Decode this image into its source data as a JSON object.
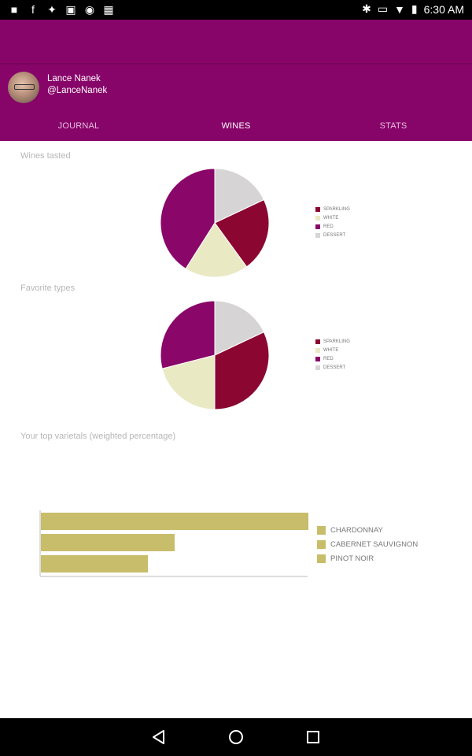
{
  "status": {
    "time": "6:30 AM",
    "notification_icons": [
      "flipboard-icon",
      "facebook-icon",
      "twitter-icon",
      "watch-icon",
      "android-icon",
      "photo-icon"
    ]
  },
  "profile": {
    "name": "Lance Nanek",
    "handle": "@LanceNanek"
  },
  "tabs": [
    {
      "label": "JOURNAL",
      "active": false
    },
    {
      "label": "WINES",
      "active": true
    },
    {
      "label": "STATS",
      "active": false
    }
  ],
  "colors": {
    "primary": "#870468",
    "sparkling": "#8b0631",
    "white": "#e9e9c4",
    "red": "#8a0668",
    "dessert": "#d6d4d4",
    "bar": "#c8bd6a"
  },
  "sections": {
    "wines_tasted": "Wines tasted",
    "favorite_types": "Favorite types",
    "top_varietals": "Your top varietals (weighted percentage)"
  },
  "chart_data": [
    {
      "type": "pie",
      "legend": [
        "SPARKLING",
        "WHITE",
        "RED",
        "DESSERT"
      ],
      "values": [
        0.22,
        0.19,
        0.41,
        0.18
      ]
    },
    {
      "type": "pie",
      "legend": [
        "SPARKLING",
        "WHITE",
        "RED",
        "DESSERT"
      ],
      "values": [
        0.32,
        0.21,
        0.29,
        0.18
      ]
    },
    {
      "type": "bar",
      "orientation": "horizontal",
      "categories": [
        "CHARDONNAY",
        "CABERNET SAUVIGNON",
        "PINOT NOIR"
      ],
      "values": [
        100,
        50,
        40
      ]
    }
  ]
}
